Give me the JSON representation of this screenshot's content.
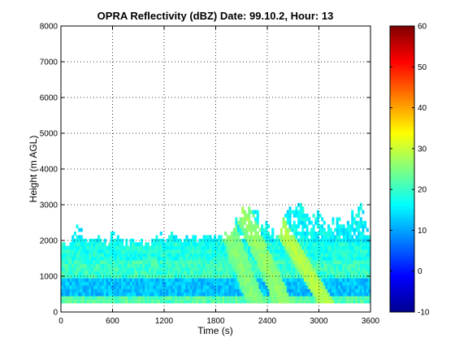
{
  "chart_data": {
    "type": "heatmap",
    "title": "OPRA Reflectivity (dBZ)  Date: 99.10.2, Hour: 13",
    "xlabel": "Time (s)",
    "ylabel": "Height (m AGL)",
    "xlim": [
      0,
      3600
    ],
    "ylim": [
      0,
      8000
    ],
    "xticks": [
      "0",
      "600",
      "1200",
      "1800",
      "2400",
      "3000",
      "3600"
    ],
    "yticks": [
      "0",
      "1000",
      "2000",
      "3000",
      "4000",
      "5000",
      "6000",
      "7000",
      "8000"
    ],
    "grid": true,
    "colormap": "jet",
    "clim": [
      -10,
      60
    ],
    "colorbar_ticks": [
      "-10",
      "0",
      "10",
      "20",
      "30",
      "40",
      "50",
      "60"
    ],
    "echo_top_profile": {
      "time": [
        0,
        100,
        200,
        300,
        400,
        500,
        600,
        700,
        800,
        900,
        1000,
        1100,
        1200,
        1300,
        1400,
        1500,
        1600,
        1700,
        1800,
        1900,
        2000,
        2100,
        2200,
        2300,
        2400,
        2500,
        2600,
        2700,
        2800,
        2900,
        3000,
        3100,
        3200,
        3300,
        3400,
        3500,
        3600
      ],
      "top_height": [
        1800,
        2000,
        2300,
        2000,
        2000,
        1900,
        2100,
        2000,
        1900,
        2000,
        1800,
        2100,
        2000,
        2100,
        2000,
        2100,
        1900,
        2100,
        2000,
        2100,
        2300,
        2700,
        2900,
        2600,
        2300,
        2100,
        2700,
        2900,
        2900,
        2700,
        2800,
        2400,
        2500,
        2500,
        2700,
        2900,
        2000
      ]
    },
    "reflectivity_layers": [
      {
        "from_height": 250,
        "to_height": 500,
        "dbz": 22
      },
      {
        "from_height": 500,
        "to_height": 1000,
        "dbz": 12
      },
      {
        "from_height": 1000,
        "to_height": 1500,
        "dbz": 20
      },
      {
        "from_height": 1500,
        "to_height": 2000,
        "dbz": 18
      },
      {
        "from_height": 2000,
        "to_height": 3000,
        "dbz": 16
      }
    ],
    "enhanced_bands": [
      {
        "time_at_1000m": 2150,
        "time_at_2600m": 1900,
        "dbz": 26
      },
      {
        "time_at_1000m": 2450,
        "time_at_2600m": 2150,
        "dbz": 27
      },
      {
        "time_at_1000m": 2900,
        "time_at_2600m": 2500,
        "dbz": 29
      }
    ]
  }
}
